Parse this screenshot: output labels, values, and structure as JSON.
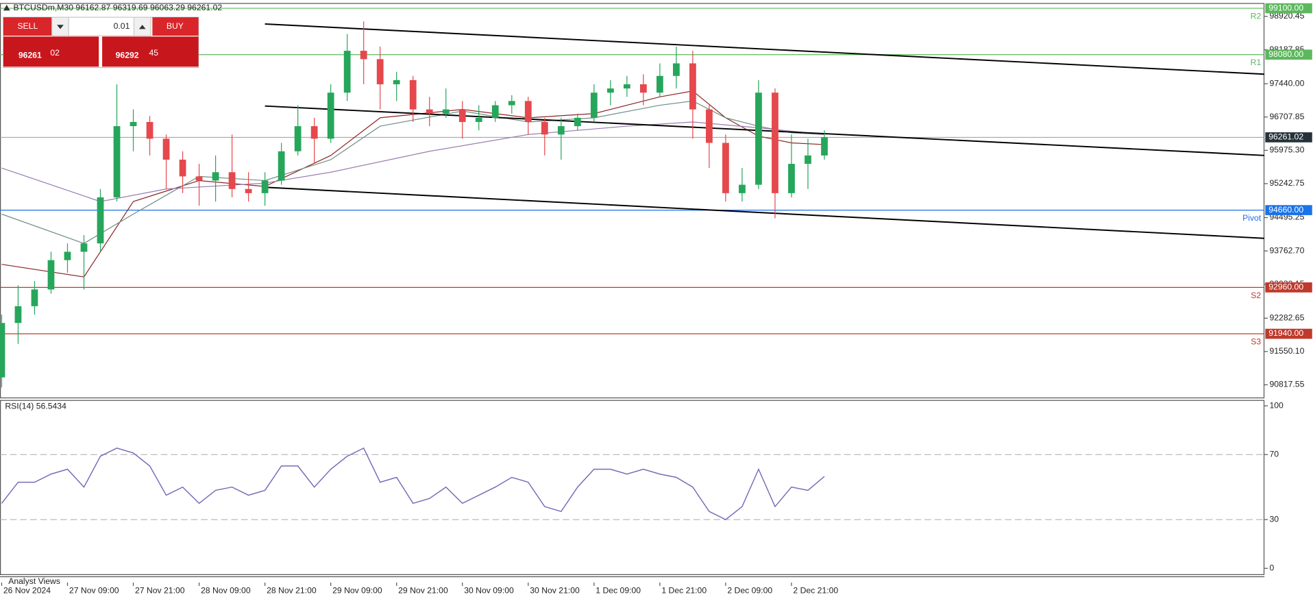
{
  "trade_panel": {
    "sell": "SELL",
    "buy": "BUY",
    "volume": "0.01",
    "bid_main": "96261",
    "bid_pips": "02",
    "ask_main": "96292",
    "ask_pips": "45"
  },
  "footer": "Analyst Views",
  "chart_data": [
    {
      "type": "candlestick",
      "title": "BTCUSDm,M30  96162.87 96319.69 96063.29 96261.02",
      "categories": [
        "26 Nov 2024",
        null,
        null,
        null,
        "27 Nov 09:00",
        null,
        null,
        null,
        "27 Nov 21:00",
        null,
        null,
        null,
        "28 Nov 09:00",
        null,
        null,
        null,
        "28 Nov 21:00",
        null,
        null,
        null,
        "29 Nov 09:00",
        null,
        null,
        null,
        "29 Nov 21:00",
        null,
        null,
        null,
        "30 Nov 09:00",
        null,
        null,
        null,
        "30 Nov 21:00",
        null,
        null,
        null,
        "1 Dec 09:00",
        null,
        null,
        null,
        "1 Dec 21:00",
        null,
        null,
        null,
        "2 Dec 09:00",
        null,
        null,
        null,
        "2 Dec 21:00",
        null,
        null
      ],
      "open": [
        90981,
        92178,
        92547,
        92915,
        93560,
        93744,
        93928,
        94941,
        96507,
        96599,
        96231,
        95770,
        95402,
        95310,
        95494,
        95125,
        95033,
        95310,
        95954,
        96507,
        96231,
        97244,
        98165,
        97981,
        97428,
        97520,
        96875,
        96783,
        96875,
        96599,
        96691,
        96967,
        97060,
        96599,
        96323,
        96507,
        96691,
        97244,
        97336,
        97428,
        97244,
        97612,
        97888,
        96875,
        96139,
        95033,
        95218,
        97244,
        95033,
        95678,
        95862
      ],
      "high": [
        92362,
        93007,
        93099,
        93744,
        93928,
        94112,
        95125,
        97428,
        96875,
        96728,
        96323,
        95954,
        95678,
        95862,
        96323,
        95494,
        95494,
        96139,
        96967,
        96691,
        97428,
        98533,
        98810,
        98257,
        97704,
        97612,
        97152,
        97336,
        97060,
        96967,
        97060,
        97189,
        97152,
        96691,
        96691,
        96783,
        97428,
        97520,
        97612,
        97649,
        97888,
        98257,
        98165,
        96967,
        96323,
        95586,
        97520,
        97336,
        96323,
        96231,
        96415
      ],
      "low": [
        90760,
        91718,
        92362,
        92823,
        93283,
        92915,
        93744,
        94849,
        95954,
        95862,
        95125,
        95033,
        94757,
        94849,
        94941,
        94849,
        94757,
        95218,
        95862,
        95678,
        96139,
        97060,
        97428,
        96875,
        97060,
        96599,
        96507,
        96691,
        96231,
        96415,
        96599,
        96783,
        96323,
        95862,
        95770,
        96415,
        96599,
        96967,
        97152,
        96967,
        97152,
        97336,
        96231,
        95586,
        94849,
        94849,
        95125,
        94481,
        94941,
        95125,
        95770
      ],
      "close": [
        92178,
        92547,
        92915,
        93560,
        93744,
        93928,
        94941,
        96507,
        96599,
        96231,
        95770,
        95402,
        95310,
        95494,
        95125,
        95033,
        95310,
        95954,
        96507,
        96231,
        97244,
        98165,
        97981,
        97428,
        97520,
        96875,
        96783,
        96875,
        96599,
        96691,
        96967,
        97060,
        96599,
        96323,
        96507,
        96691,
        97244,
        97336,
        97428,
        97244,
        97612,
        97888,
        96875,
        96139,
        95033,
        95218,
        97244,
        95033,
        95678,
        95862,
        96261.02
      ],
      "up_color": "#26a65b",
      "down_color": "#e5484d",
      "ylim": [
        90539,
        99215
      ],
      "yticks": [
        98920.45,
        98187.85,
        {
          "value": 97440,
          "label": "97440.00"
        },
        96707.85,
        {
          "value": 95975.3,
          "label": "95975.30"
        },
        95242.75,
        94495.25,
        {
          "value": 93762.7,
          "label": "93762.70"
        },
        93030.15,
        92282.65,
        {
          "value": 91550.1,
          "label": "91550.10"
        },
        90817.55
      ],
      "series": [
        {
          "color": "#8b2525",
          "x": [
            0,
            5,
            8,
            12,
            16,
            20,
            23,
            28,
            32,
            36,
            40,
            42,
            44,
            46,
            48,
            50
          ],
          "values": [
            93468,
            93191,
            94849,
            95310,
            95181,
            95862,
            96691,
            96875,
            96691,
            96783,
            97152,
            97281,
            96691,
            96286,
            96139,
            96102
          ]
        },
        {
          "color": "#6f8f86",
          "x": [
            0,
            5,
            8,
            12,
            16,
            20,
            23,
            28,
            32,
            36,
            40,
            42,
            44,
            46,
            48,
            50
          ],
          "values": [
            94573,
            93928,
            94573,
            95402,
            95310,
            95770,
            96507,
            96839,
            96599,
            96691,
            96967,
            97060,
            96691,
            96507,
            96360,
            96323
          ]
        },
        {
          "color": "#9b7bb0",
          "x": [
            0,
            6,
            10,
            16,
            20,
            26,
            32,
            38,
            42,
            46,
            50
          ],
          "values": [
            95586,
            94849,
            95125,
            95254,
            95494,
            95954,
            96323,
            96507,
            96599,
            96470,
            96323
          ]
        }
      ],
      "levels": [
        {
          "name": "R2",
          "value": 99100,
          "label": "99100.00",
          "color": "#5cb85c"
        },
        {
          "name": "R1",
          "value": 98080,
          "label": "98080.00",
          "color": "#5cb85c"
        },
        {
          "name": "Pivot",
          "value": 94660,
          "label": "94660.00",
          "color": "#1a73e8"
        },
        {
          "name": "S2",
          "value": 92960,
          "label": "92960.00",
          "color": "#c0392b"
        },
        {
          "name": "S3",
          "value": 91940,
          "label": "91940.00",
          "color": "#c0392b"
        }
      ],
      "trendlines": [
        {
          "x": [
            16,
            76.74
          ],
          "y": [
            98754,
            97650
          ],
          "color": "#000000"
        },
        {
          "x": [
            16,
            76.74
          ],
          "y": [
            96950,
            95863
          ],
          "color": "#000000"
        },
        {
          "x": [
            16,
            76.74
          ],
          "y": [
            95163,
            94040
          ],
          "color": "#000000"
        }
      ],
      "last_price": {
        "value": 96261.02,
        "label": "96261.02",
        "color": "#26323a"
      }
    },
    {
      "type": "line",
      "title": "RSI(14) 56.5434",
      "series": [
        {
          "color": "#7b68b8",
          "values": [
            40,
            53,
            53,
            58,
            61,
            50,
            69,
            74,
            71,
            63,
            45,
            50,
            40,
            48,
            50,
            45,
            48,
            63,
            63,
            50,
            61,
            69,
            74,
            53,
            56,
            40,
            43,
            50,
            40,
            45,
            50,
            56,
            53,
            38,
            35,
            50,
            61,
            61,
            58,
            61,
            58,
            56,
            50,
            35,
            30,
            38,
            61,
            38,
            50,
            48,
            56.5434
          ]
        }
      ],
      "ylim": [
        -3.6,
        103.6
      ],
      "yticks": [
        100,
        70,
        30,
        0
      ],
      "levels": [
        70,
        30
      ]
    }
  ]
}
